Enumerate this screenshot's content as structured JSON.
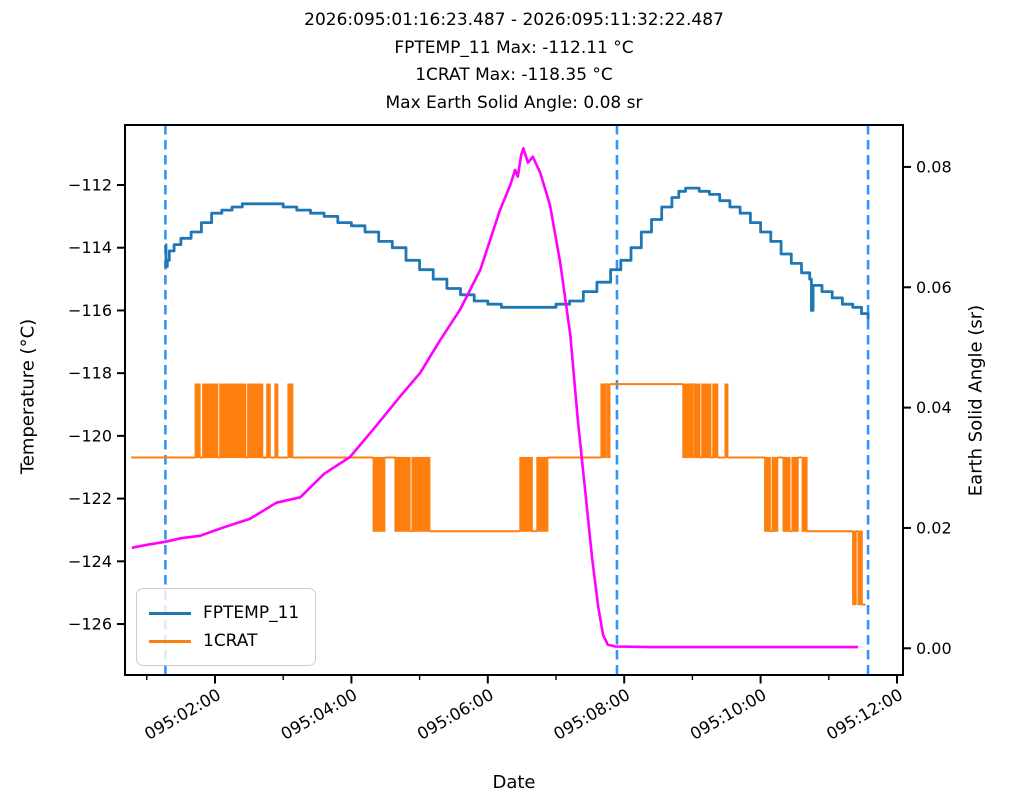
{
  "chart_data": {
    "type": "line",
    "background": "#ffffff",
    "title_lines": [
      "2026:095:01:16:23.487 - 2026:095:11:32:22.487",
      "FPTEMP_11 Max: -112.11 °C",
      "1CRAT Max: -118.35 °C",
      "Max Earth Solid Angle: 0.08 sr"
    ],
    "xlabel": "Date",
    "ylabel_left": "Temperature (°C)",
    "ylabel_right": "Earth Solid Angle (sr)",
    "x_axis": {
      "major_ticks": [
        {
          "t": 2,
          "label": "095:02:00"
        },
        {
          "t": 4,
          "label": "095:04:00"
        },
        {
          "t": 6,
          "label": "095:06:00"
        },
        {
          "t": 8,
          "label": "095:08:00"
        },
        {
          "t": 10,
          "label": "095:10:00"
        },
        {
          "t": 12,
          "label": "095:12:00"
        }
      ],
      "minor_ticks": [
        1,
        3,
        5,
        7,
        9,
        11
      ],
      "range_hours": [
        0.68,
        12.09
      ]
    },
    "y_left": {
      "tick_labels": [
        "−112",
        "−114",
        "−116",
        "−118",
        "−120",
        "−122",
        "−124",
        "−126"
      ],
      "tick_values": [
        -112,
        -114,
        -116,
        -118,
        -120,
        -122,
        -124,
        -126
      ],
      "range": [
        -127.6,
        -110.1
      ]
    },
    "y_right": {
      "tick_labels": [
        "0.08",
        "0.06",
        "0.04",
        "0.02",
        "0.00"
      ],
      "tick_values": [
        0.08,
        0.06,
        0.04,
        0.02,
        0.0
      ],
      "range": [
        -0.0045,
        0.0866
      ]
    },
    "vlines": {
      "times": [
        1.273,
        7.894,
        11.576
      ],
      "color": "#2e96f8",
      "style": "dashed"
    },
    "series": {
      "fptemp": {
        "name": "FPTEMP_11",
        "color": "#1f77b4",
        "points": [
          [
            1.273,
            -113.88
          ],
          [
            1.282,
            -114.65
          ],
          [
            1.3,
            -114.45
          ],
          [
            1.33,
            -114.1
          ],
          [
            1.4,
            -113.92
          ],
          [
            1.5,
            -113.72
          ],
          [
            1.65,
            -113.48
          ],
          [
            1.8,
            -113.22
          ],
          [
            1.95,
            -112.95
          ],
          [
            2.1,
            -112.8
          ],
          [
            2.25,
            -112.7
          ],
          [
            2.4,
            -112.65
          ],
          [
            2.6,
            -112.62
          ],
          [
            2.8,
            -112.62
          ],
          [
            3.0,
            -112.68
          ],
          [
            3.2,
            -112.78
          ],
          [
            3.4,
            -112.9
          ],
          [
            3.6,
            -113.02
          ],
          [
            3.8,
            -113.18
          ],
          [
            4.0,
            -113.35
          ],
          [
            4.2,
            -113.55
          ],
          [
            4.4,
            -113.78
          ],
          [
            4.6,
            -114.05
          ],
          [
            4.8,
            -114.38
          ],
          [
            5.0,
            -114.7
          ],
          [
            5.2,
            -115.02
          ],
          [
            5.4,
            -115.3
          ],
          [
            5.6,
            -115.55
          ],
          [
            5.8,
            -115.72
          ],
          [
            6.0,
            -115.84
          ],
          [
            6.2,
            -115.9
          ],
          [
            6.5,
            -115.93
          ],
          [
            6.8,
            -115.9
          ],
          [
            7.0,
            -115.85
          ],
          [
            7.2,
            -115.7
          ],
          [
            7.4,
            -115.45
          ],
          [
            7.6,
            -115.15
          ],
          [
            7.8,
            -114.75
          ],
          [
            7.95,
            -114.4
          ],
          [
            8.1,
            -113.98
          ],
          [
            8.25,
            -113.55
          ],
          [
            8.4,
            -113.1
          ],
          [
            8.55,
            -112.7
          ],
          [
            8.7,
            -112.38
          ],
          [
            8.8,
            -112.18
          ],
          [
            8.9,
            -112.12
          ],
          [
            9.0,
            -112.13
          ],
          [
            9.1,
            -112.18
          ],
          [
            9.25,
            -112.3
          ],
          [
            9.4,
            -112.48
          ],
          [
            9.55,
            -112.7
          ],
          [
            9.7,
            -112.95
          ],
          [
            9.85,
            -113.22
          ],
          [
            10.0,
            -113.52
          ],
          [
            10.15,
            -113.85
          ],
          [
            10.3,
            -114.18
          ],
          [
            10.45,
            -114.52
          ],
          [
            10.6,
            -114.82
          ],
          [
            10.72,
            -115.02
          ],
          [
            10.745,
            -116.0
          ],
          [
            10.77,
            -115.18
          ],
          [
            10.9,
            -115.4
          ],
          [
            11.05,
            -115.6
          ],
          [
            11.2,
            -115.8
          ],
          [
            11.35,
            -115.95
          ],
          [
            11.48,
            -116.1
          ],
          [
            11.576,
            -116.28
          ]
        ]
      },
      "crat": {
        "name": "1CRAT",
        "color": "#ff7f0e",
        "levels": {
          "high": -118.35,
          "base": -120.69,
          "low": -123.04,
          "lowest": -125.38
        },
        "segments": [
          [
            "line",
            "base",
            0.77,
            1.71
          ],
          [
            "band",
            "high",
            "base",
            1.71,
            1.78
          ],
          [
            "line",
            "base",
            1.78,
            1.82
          ],
          [
            "band",
            "high",
            "base",
            1.82,
            2.04
          ],
          [
            "line",
            "base",
            2.04,
            2.07
          ],
          [
            "band",
            "high",
            "base",
            2.07,
            2.45
          ],
          [
            "line",
            "base",
            2.45,
            2.48
          ],
          [
            "band",
            "high",
            "base",
            2.48,
            2.7
          ],
          [
            "line",
            "base",
            2.7,
            2.76
          ],
          [
            "band",
            "high",
            "base",
            2.76,
            2.81
          ],
          [
            "line",
            "base",
            2.81,
            2.88
          ],
          [
            "band",
            "high",
            "base",
            2.88,
            2.92
          ],
          [
            "line",
            "base",
            2.92,
            3.07
          ],
          [
            "band",
            "high",
            "base",
            3.07,
            3.14
          ],
          [
            "line",
            "base",
            3.14,
            4.32
          ],
          [
            "band",
            "base",
            "low",
            4.32,
            4.49
          ],
          [
            "line",
            "base",
            4.49,
            4.64
          ],
          [
            "band",
            "base",
            "low",
            4.64,
            4.86
          ],
          [
            "line",
            "low",
            4.86,
            4.89
          ],
          [
            "band",
            "base",
            "low",
            4.89,
            5.15
          ],
          [
            "line",
            "low",
            5.15,
            6.47
          ],
          [
            "band",
            "base",
            "low",
            6.47,
            6.65
          ],
          [
            "line",
            "low",
            6.65,
            6.72
          ],
          [
            "band",
            "base",
            "low",
            6.72,
            6.88
          ],
          [
            "line",
            "base",
            6.88,
            7.66
          ],
          [
            "band",
            "high",
            "base",
            7.66,
            7.73
          ],
          [
            "line",
            "high",
            7.73,
            7.75
          ],
          [
            "band",
            "high",
            "base",
            7.75,
            7.79
          ],
          [
            "line",
            "high",
            7.79,
            8.86
          ],
          [
            "band",
            "high",
            "base",
            8.86,
            9.0
          ],
          [
            "line",
            "high",
            9.0,
            9.02
          ],
          [
            "band",
            "high",
            "base",
            9.02,
            9.11
          ],
          [
            "line",
            "base",
            9.11,
            9.14
          ],
          [
            "band",
            "high",
            "base",
            9.14,
            9.27
          ],
          [
            "line",
            "base",
            9.27,
            9.3
          ],
          [
            "band",
            "high",
            "base",
            9.3,
            9.37
          ],
          [
            "line",
            "base",
            9.37,
            9.48
          ],
          [
            "band",
            "high",
            "base",
            9.48,
            9.52
          ],
          [
            "line",
            "base",
            9.52,
            10.06
          ],
          [
            "band",
            "base",
            "low",
            10.06,
            10.14
          ],
          [
            "line",
            "low",
            10.14,
            10.17
          ],
          [
            "band",
            "base",
            "low",
            10.17,
            10.25
          ],
          [
            "line",
            "base",
            10.25,
            10.33
          ],
          [
            "band",
            "base",
            "low",
            10.33,
            10.43
          ],
          [
            "line",
            "low",
            10.43,
            10.46
          ],
          [
            "band",
            "base",
            "low",
            10.46,
            10.55
          ],
          [
            "line",
            "base",
            10.55,
            10.61
          ],
          [
            "band",
            "base",
            "low",
            10.61,
            10.68
          ],
          [
            "line",
            "low",
            10.68,
            11.35
          ],
          [
            "band",
            "low",
            "lowest",
            11.35,
            11.4
          ],
          [
            "line",
            "low",
            11.4,
            11.43
          ],
          [
            "band",
            "low",
            "lowest",
            11.43,
            11.49
          ],
          [
            "line",
            "lowest",
            11.49,
            11.54
          ]
        ]
      },
      "solid_angle": {
        "name": "Earth Solid Angle",
        "color": "#ff00ff",
        "points": [
          [
            0.78,
            0.0167
          ],
          [
            1.0,
            0.0172
          ],
          [
            1.27,
            0.0177
          ],
          [
            1.5,
            0.0183
          ],
          [
            1.78,
            0.0187
          ],
          [
            2.1,
            0.02
          ],
          [
            2.51,
            0.0215
          ],
          [
            2.9,
            0.0242
          ],
          [
            3.25,
            0.0251
          ],
          [
            3.6,
            0.029
          ],
          [
            3.98,
            0.0318
          ],
          [
            4.35,
            0.0368
          ],
          [
            4.71,
            0.0418
          ],
          [
            5.01,
            0.0458
          ],
          [
            5.3,
            0.0512
          ],
          [
            5.59,
            0.0562
          ],
          [
            5.89,
            0.0629
          ],
          [
            6.18,
            0.0729
          ],
          [
            6.33,
            0.077
          ],
          [
            6.4,
            0.0795
          ],
          [
            6.44,
            0.0784
          ],
          [
            6.49,
            0.082
          ],
          [
            6.52,
            0.0831
          ],
          [
            6.59,
            0.0807
          ],
          [
            6.66,
            0.0817
          ],
          [
            6.77,
            0.079
          ],
          [
            6.91,
            0.0737
          ],
          [
            7.06,
            0.0642
          ],
          [
            7.21,
            0.0521
          ],
          [
            7.32,
            0.038
          ],
          [
            7.43,
            0.026
          ],
          [
            7.53,
            0.015
          ],
          [
            7.62,
            0.0068
          ],
          [
            7.69,
            0.0022
          ],
          [
            7.76,
            0.0006
          ],
          [
            7.87,
            0.0003
          ],
          [
            8.38,
            0.0002
          ],
          [
            11.43,
            0.0002
          ]
        ]
      }
    },
    "legend": {
      "entries": [
        "FPTEMP_11",
        "1CRAT"
      ],
      "position": "lower left"
    }
  }
}
